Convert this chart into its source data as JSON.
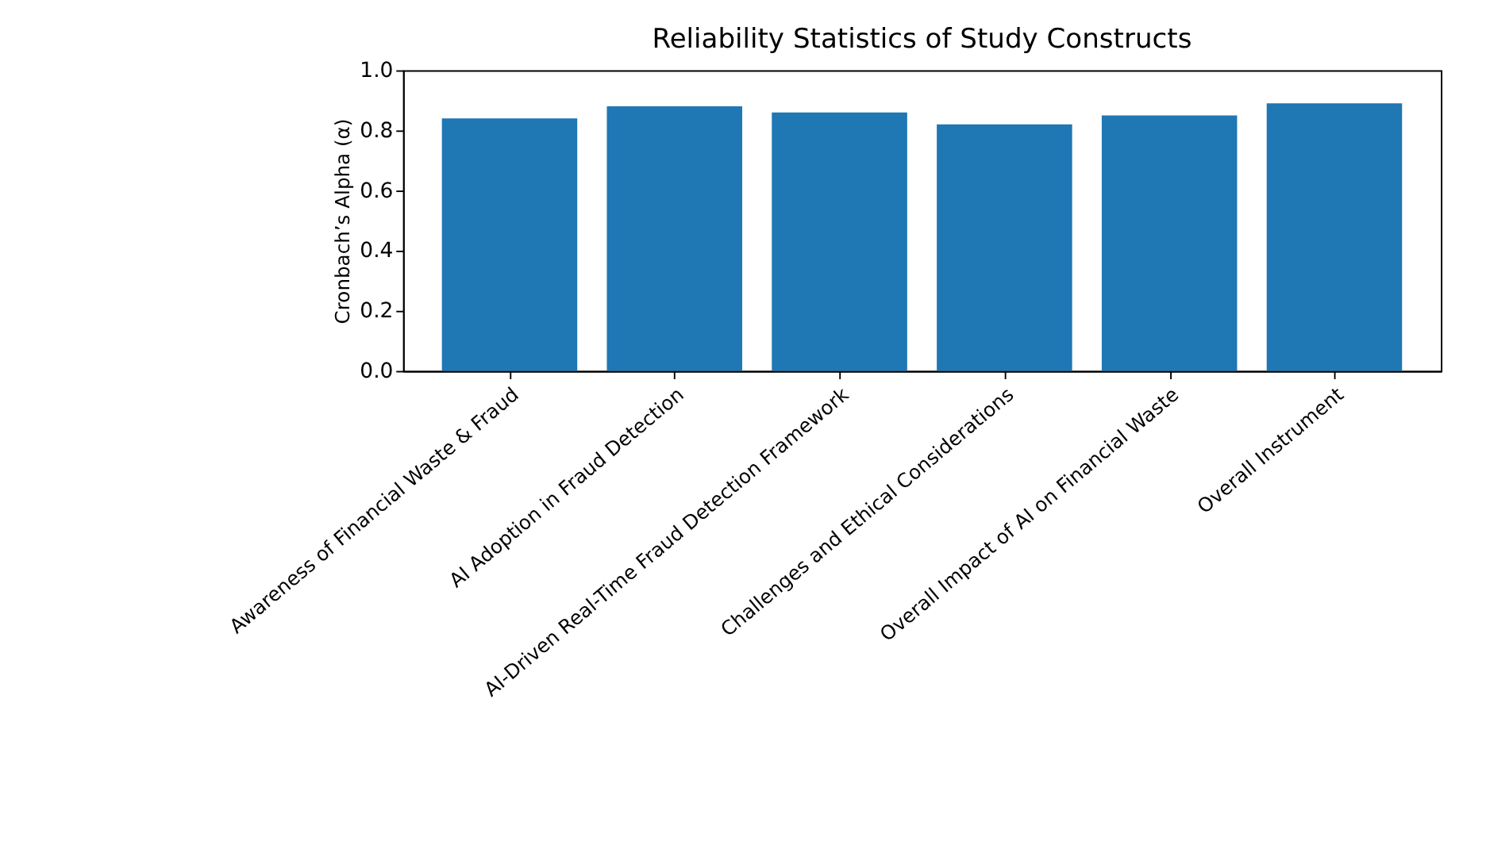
{
  "chart_data": {
    "type": "bar",
    "title": "Reliability Statistics of Study Constructs",
    "ylabel": "Cronbach’s Alpha (α)",
    "categories": [
      "Awareness of Financial Waste & Fraud",
      "AI Adoption in Fraud Detection",
      "AI-Driven Real-Time Fraud Detection Framework",
      "Challenges and Ethical Considerations",
      "Overall Impact of AI on Financial Waste",
      "Overall Instrument"
    ],
    "values": [
      0.84,
      0.88,
      0.86,
      0.82,
      0.85,
      0.89
    ],
    "color": "#1f77b4",
    "ylim": [
      0,
      1.0
    ],
    "yticks": [
      {
        "value": 0,
        "label": "0.0"
      },
      0.2,
      0.4,
      0.6,
      0.8,
      {
        "value": 1,
        "label": "1.0"
      }
    ],
    "grid": false
  }
}
